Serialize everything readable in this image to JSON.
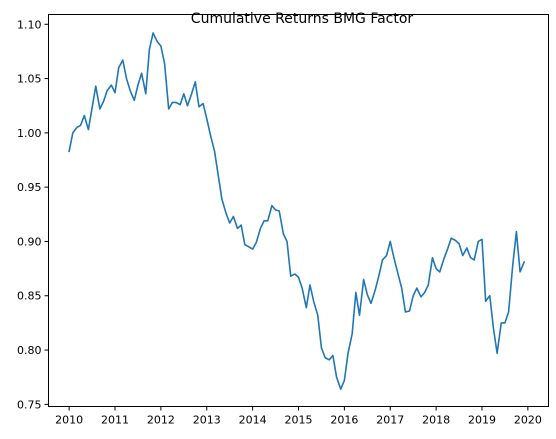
{
  "chart_data": {
    "type": "line",
    "title": "Cumulative Returns BMG Factor",
    "xlabel": "",
    "ylabel": "",
    "xlim": [
      2009.55,
      2020.45
    ],
    "ylim": [
      0.748,
      1.109
    ],
    "x_ticks": [
      2010,
      2011,
      2012,
      2013,
      2014,
      2015,
      2016,
      2017,
      2018,
      2019,
      2020
    ],
    "y_ticks": [
      0.75,
      0.8,
      0.85,
      0.9,
      0.95,
      1.0,
      1.05,
      1.1
    ],
    "y_tick_labels": [
      "0.75",
      "0.80",
      "0.85",
      "0.90",
      "0.95",
      "1.00",
      "1.05",
      "1.10"
    ],
    "grid": false,
    "legend": "none",
    "colors": {
      "line": "#1f77b4",
      "axes": "#000000"
    },
    "series": [
      {
        "x": [
          2010.0,
          2010.08,
          2010.17,
          2010.25,
          2010.33,
          2010.42,
          2010.5,
          2010.58,
          2010.67,
          2010.75,
          2010.83,
          2010.92,
          2011.0,
          2011.08,
          2011.17,
          2011.25,
          2011.33,
          2011.42,
          2011.5,
          2011.58,
          2011.67,
          2011.75,
          2011.83,
          2011.92,
          2012.0,
          2012.08,
          2012.17,
          2012.25,
          2012.33,
          2012.42,
          2012.5,
          2012.58,
          2012.67,
          2012.75,
          2012.83,
          2012.92,
          2013.0,
          2013.08,
          2013.17,
          2013.25,
          2013.33,
          2013.42,
          2013.5,
          2013.58,
          2013.67,
          2013.75,
          2013.83,
          2013.92,
          2014.0,
          2014.08,
          2014.17,
          2014.25,
          2014.33,
          2014.42,
          2014.5,
          2014.58,
          2014.67,
          2014.75,
          2014.83,
          2014.92,
          2015.0,
          2015.08,
          2015.17,
          2015.25,
          2015.33,
          2015.42,
          2015.5,
          2015.58,
          2015.67,
          2015.75,
          2015.83,
          2015.92,
          2016.0,
          2016.08,
          2016.17,
          2016.25,
          2016.33,
          2016.42,
          2016.5,
          2016.58,
          2016.67,
          2016.75,
          2016.83,
          2016.92,
          2017.0,
          2017.08,
          2017.17,
          2017.25,
          2017.33,
          2017.42,
          2017.5,
          2017.58,
          2017.67,
          2017.75,
          2017.83,
          2017.92,
          2018.0,
          2018.08,
          2018.17,
          2018.25,
          2018.33,
          2018.42,
          2018.5,
          2018.58,
          2018.67,
          2018.75,
          2018.83,
          2018.92,
          2019.0,
          2019.08,
          2019.17,
          2019.25,
          2019.33,
          2019.42,
          2019.5,
          2019.58,
          2019.67,
          2019.75,
          2019.83,
          2019.92
        ],
        "y": [
          0.983,
          1.0,
          1.005,
          1.007,
          1.016,
          1.003,
          1.023,
          1.043,
          1.022,
          1.029,
          1.039,
          1.044,
          1.037,
          1.06,
          1.067,
          1.05,
          1.039,
          1.03,
          1.044,
          1.055,
          1.036,
          1.077,
          1.092,
          1.084,
          1.08,
          1.064,
          1.022,
          1.028,
          1.028,
          1.026,
          1.036,
          1.025,
          1.036,
          1.047,
          1.024,
          1.027,
          1.013,
          0.998,
          0.983,
          0.961,
          0.939,
          0.926,
          0.917,
          0.923,
          0.912,
          0.915,
          0.897,
          0.895,
          0.893,
          0.899,
          0.912,
          0.919,
          0.919,
          0.933,
          0.929,
          0.928,
          0.907,
          0.9,
          0.868,
          0.87,
          0.867,
          0.857,
          0.839,
          0.86,
          0.845,
          0.832,
          0.802,
          0.793,
          0.791,
          0.795,
          0.775,
          0.764,
          0.772,
          0.797,
          0.815,
          0.853,
          0.832,
          0.865,
          0.851,
          0.843,
          0.855,
          0.868,
          0.883,
          0.887,
          0.9,
          0.885,
          0.87,
          0.857,
          0.835,
          0.836,
          0.85,
          0.857,
          0.849,
          0.853,
          0.86,
          0.885,
          0.875,
          0.872,
          0.884,
          0.893,
          0.903,
          0.901,
          0.898,
          0.887,
          0.894,
          0.885,
          0.883,
          0.9,
          0.902,
          0.845,
          0.85,
          0.82,
          0.797,
          0.825,
          0.825,
          0.835,
          0.878,
          0.909,
          0.872,
          0.881
        ]
      }
    ]
  }
}
